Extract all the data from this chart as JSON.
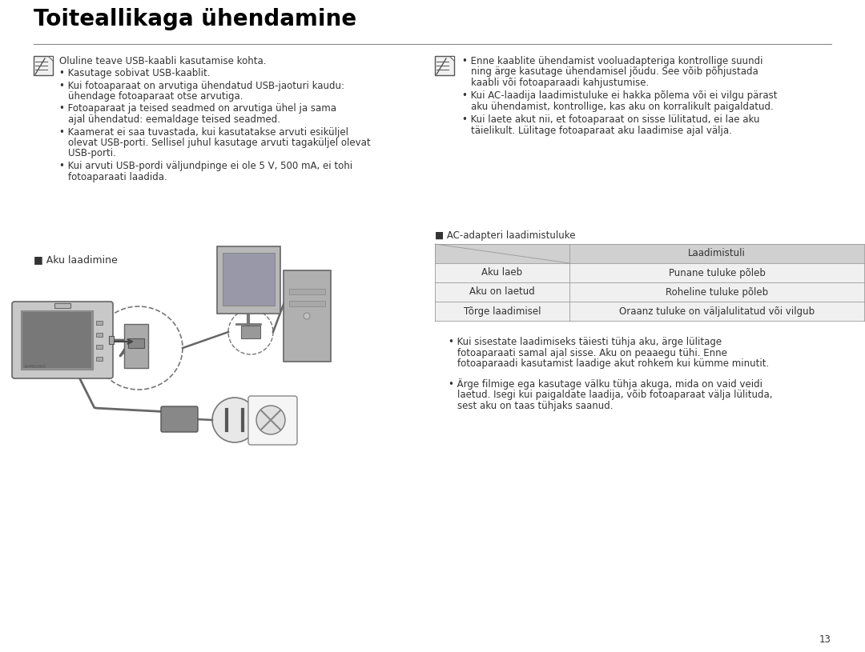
{
  "title": "Toiteallikaga ühendamine",
  "page_number": "13",
  "bg_color": "#ffffff",
  "title_color": "#000000",
  "text_color": "#333333",
  "body_font_size": 8.5,
  "title_font_size": 20,
  "divider_color": "#888888",
  "left_note_header": "Oluline teave USB-kaabli kasutamise kohta.",
  "left_bullets": [
    "Kasutage sobivat USB-kaablit.",
    "Kui fotoaparaat on arvutiga ühendatud USB-jaoturi kaudu:\nühendage fotoaparaat otse arvutiga.",
    "Fotoaparaat ja teised seadmed on arvutiga ühel ja sama\najal ühendatud: eemaldage teised seadmed.",
    "Kaamerat ei saa tuvastada, kui kasutatakse arvuti esiküljel\nolevat USB-porti. Sellisel juhul kasutage arvuti tagaküljel olevat\nUSB-porti.",
    "Kui arvuti USB-pordi väljundpinge ei ole 5 V, 500 mA, ei tohi\nfotoaparaati laadida."
  ],
  "right_bullets": [
    "Enne kaablite ühendamist vooluadapteriga kontrollige suundi\nning ärge kasutage ühendamisel jõudu. See võib põhjustada\nkaabli või fotoaparaadi kahjustumise.",
    "Kui AC-laadija laadimistuluke ei hakka põlema või ei vilgu pärast\naku ühendamist, kontrollige, kas aku on korralikult paigaldatud.",
    "Kui laete akut nii, et fotoaparaat on sisse lülitatud, ei lae aku\ntäielikult. Lülitage fotoaparaat aku laadimise ajal välja."
  ],
  "aku_label": "■ Aku laadimine",
  "ac_table_label": "■ AC-adapteri laadimistuluke",
  "table_header_right": "Laadimistuli",
  "table_rows": [
    [
      "Aku laeb",
      "Punane tuluke põleb"
    ],
    [
      "Aku on laetud",
      "Roheline tuluke põleb"
    ],
    [
      "Tõrge laadimisel",
      "Oraanz tuluke on väljalulitatud või vilgub"
    ]
  ],
  "table_header_bg": "#d0d0d0",
  "table_row_bg": "#f0f0f0",
  "table_border_color": "#999999",
  "bottom_bullets": [
    "Kui sisestate laadimiseks täiesti tühja aku, ärge lülitage\nfotoaparaati samal ajal sisse. Aku on peaaegu tühi. Enne\nfotoaparaadi kasutamist laadige akut rohkem kui kümme minutit.",
    "Ärge filmige ega kasutage välku tühja akuga, mida on vaid veidi\nlaetud. Isegi kui paigaldate laadija, võib fotoaparaat välja lülituda,\nsest aku on taas tühjaks saanud."
  ]
}
